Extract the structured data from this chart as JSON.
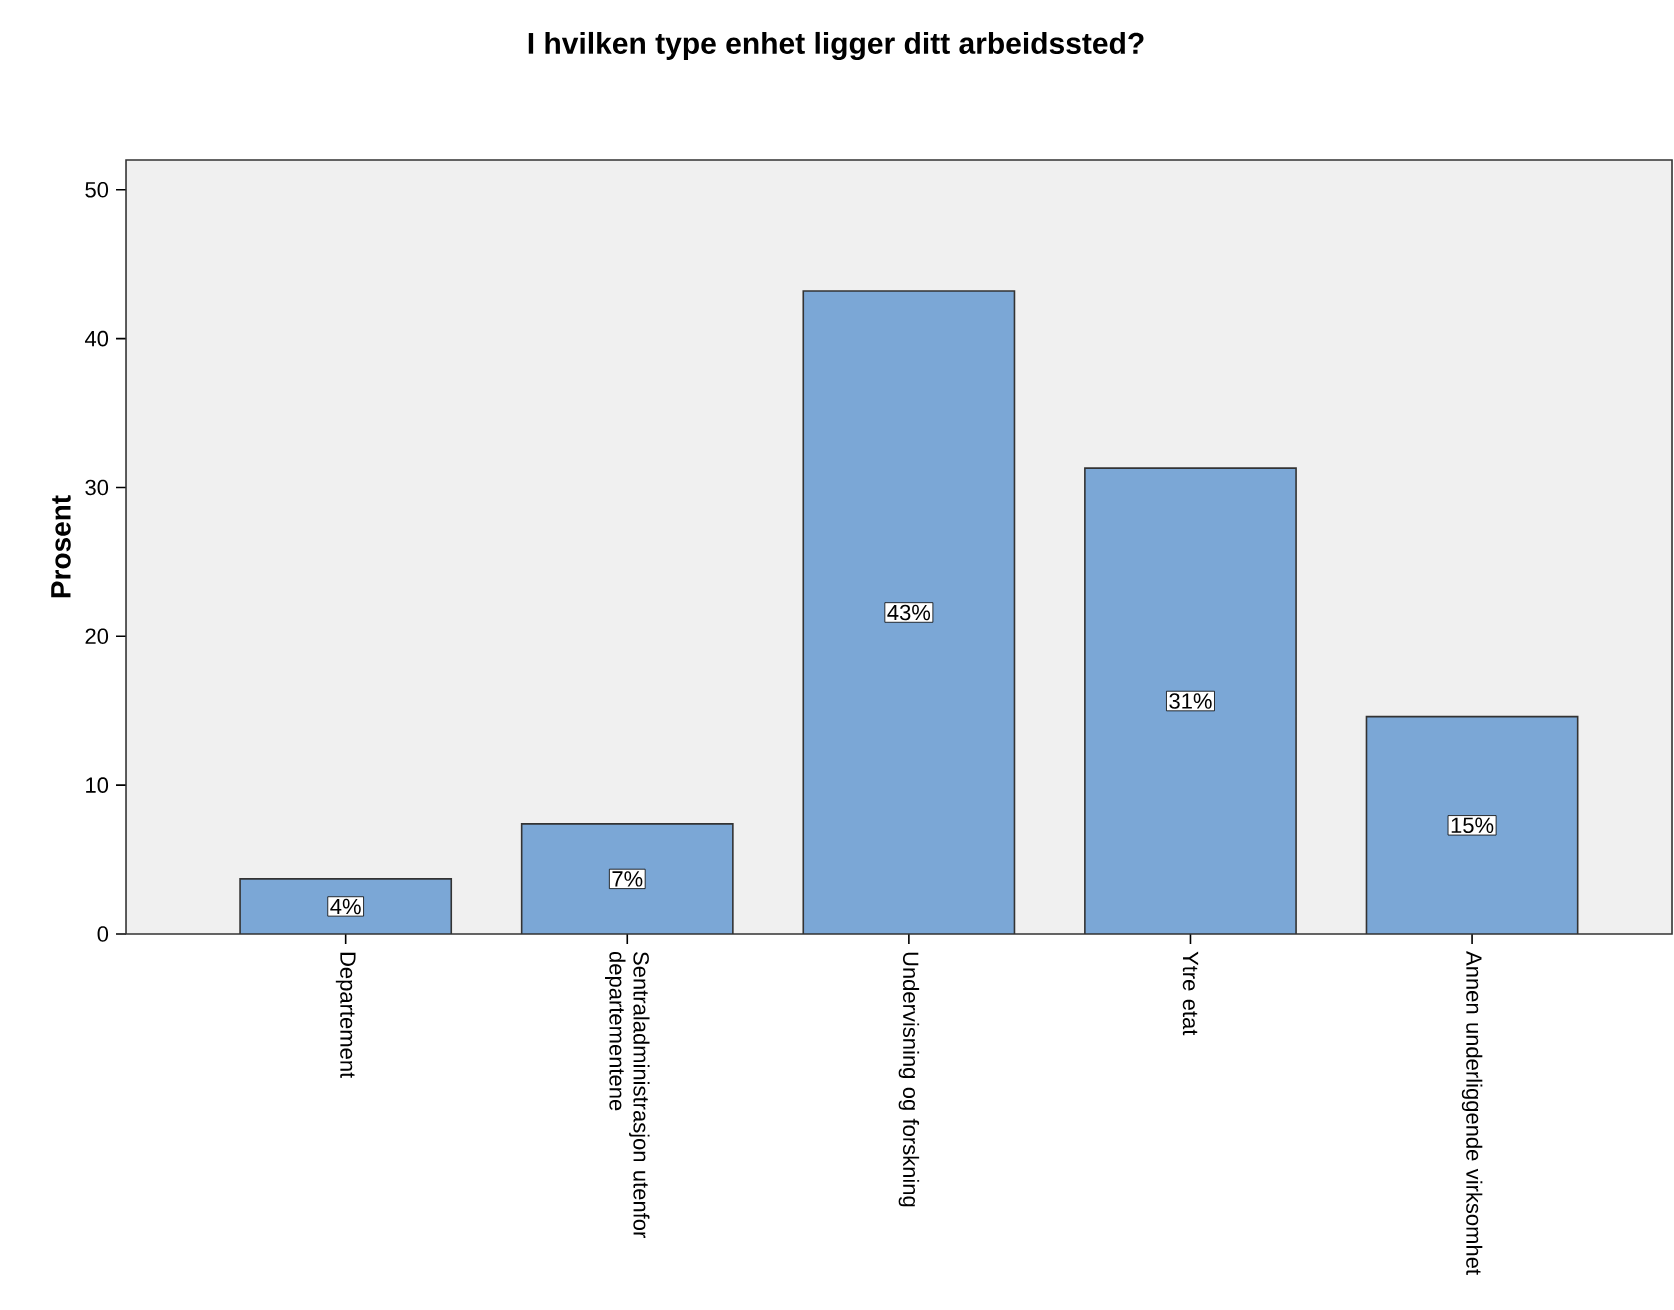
{
  "chart_data": {
    "type": "bar",
    "title": "I hvilken type enhet ligger ditt arbeidssted?",
    "ylabel": "Prosent",
    "categories": [
      "Departement",
      "Sentraladministrasjon utenfor departementene",
      "Undervisning og forskning",
      "Ytre etat",
      "Annen underliggende virksomhet"
    ],
    "values": [
      3.7,
      7.4,
      43.2,
      31.3,
      14.6
    ],
    "value_labels": [
      "4%",
      "7%",
      "43%",
      "31%",
      "15%"
    ],
    "color": "#7ba7d6",
    "ylim": [
      0,
      52
    ],
    "yticks": [
      0,
      10,
      20,
      30,
      40,
      50
    ],
    "grid": false
  }
}
